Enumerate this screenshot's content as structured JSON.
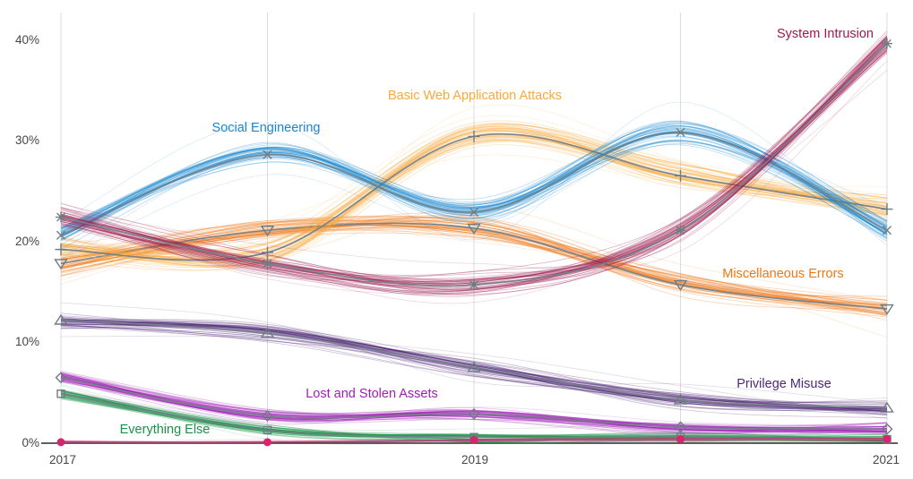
{
  "chart_data": {
    "type": "line",
    "title": "",
    "description": "Spaghetti-band line chart of breach pattern percentages over time, each series drawn as a bundle of thin simulated lines around a gray mean line with a distinct gray marker",
    "x": [
      2017,
      2018,
      2019,
      2020,
      2021
    ],
    "xlim": [
      2017,
      2021
    ],
    "ylim": [
      0,
      42.5
    ],
    "grid": "vertical-gridlines-only",
    "legend": "inline-colored-labels",
    "y_ticks": [
      {
        "text": "0%",
        "value": 0
      },
      {
        "text": "10%",
        "value": 10
      },
      {
        "text": "20%",
        "value": 20
      },
      {
        "text": "30%",
        "value": 30
      },
      {
        "text": "40%",
        "value": 40
      }
    ],
    "x_ticks": [
      {
        "text": "2017",
        "year": 2017
      },
      {
        "text": "2019",
        "year": 2019
      },
      {
        "text": "2021",
        "year": 2021
      }
    ],
    "series": [
      {
        "name": "System Intrusion",
        "color": "#9A1A4F",
        "marker": "asterisk",
        "values": [
          22.4,
          17.8,
          15.7,
          21.1,
          39.6
        ],
        "spread": 1.2
      },
      {
        "name": "Social Engineering",
        "color": "#1787D1",
        "marker": "x",
        "values": [
          20.6,
          28.6,
          22.9,
          30.8,
          21.1
        ],
        "spread": 1.3
      },
      {
        "name": "Basic Web Application Attacks",
        "color": "#F9A93B",
        "marker": "plus",
        "values": [
          19.2,
          18.9,
          30.4,
          26.5,
          23.2
        ],
        "spread": 1.4
      },
      {
        "name": "Miscellaneous Errors",
        "color": "#ED7817",
        "marker": "triangle-down",
        "values": [
          17.8,
          21.1,
          21.3,
          15.7,
          13.3
        ],
        "spread": 1.2
      },
      {
        "name": "Privilege Misuse",
        "color": "#4E2878",
        "marker": "triangle-up",
        "values": [
          12.2,
          10.9,
          7.5,
          4.3,
          3.5
        ],
        "spread": 0.9
      },
      {
        "name": "Lost and Stolen Assets",
        "color": "#9E1FB5",
        "marker": "diamond",
        "values": [
          6.5,
          2.7,
          2.9,
          1.6,
          1.4
        ],
        "spread": 0.65
      },
      {
        "name": "Everything Else",
        "color": "#189345",
        "marker": "square",
        "values": [
          4.9,
          1.3,
          0.6,
          0.6,
          0.4
        ],
        "spread": 0.5
      },
      {
        "name": "",
        "color": "#D6246E",
        "marker": "circle-filled",
        "values": [
          0.1,
          0.1,
          0.3,
          0.4,
          0.4
        ],
        "spread": 0.12
      }
    ],
    "z_order": [
      6,
      5,
      4,
      3,
      2,
      1,
      0,
      7
    ],
    "colors": {
      "mean_line": "#75828A",
      "marker": "#6F7C83",
      "gridline": "#DCDCDC",
      "axis_line": "#2B2B2B",
      "tick_text": "#454545"
    }
  }
}
